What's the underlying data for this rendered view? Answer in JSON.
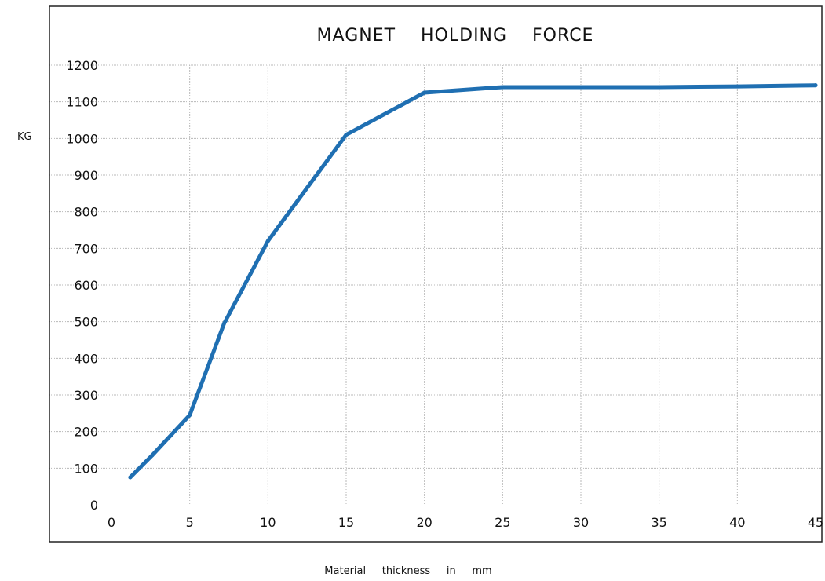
{
  "chart_data": {
    "type": "line",
    "title": "MAGNET    HOLDING    FORCE",
    "xlabel": "Material     thickness     in     mm",
    "ylabel": "KG",
    "xlim": [
      0,
      45
    ],
    "ylim": [
      0,
      1200
    ],
    "x_ticks": [
      "0",
      "5",
      "10",
      "15",
      "20",
      "25",
      "30",
      "35",
      "40",
      "45"
    ],
    "y_ticks": [
      "0",
      "100",
      "200",
      "300",
      "400",
      "500",
      "600",
      "700",
      "800",
      "900",
      "1000",
      "1100",
      "1200"
    ],
    "grid": true,
    "colors": {
      "line": "#1f6fb2",
      "grid": "#b8b8b8",
      "frame": "#222222"
    },
    "series": [
      {
        "x": [
          1.2,
          2.6,
          5,
          7.2,
          10,
          15,
          20,
          25,
          30,
          35,
          40,
          45
        ],
        "y": [
          75,
          135,
          245,
          495,
          720,
          1010,
          1125,
          1140,
          1140,
          1140,
          1142,
          1145
        ]
      }
    ]
  }
}
